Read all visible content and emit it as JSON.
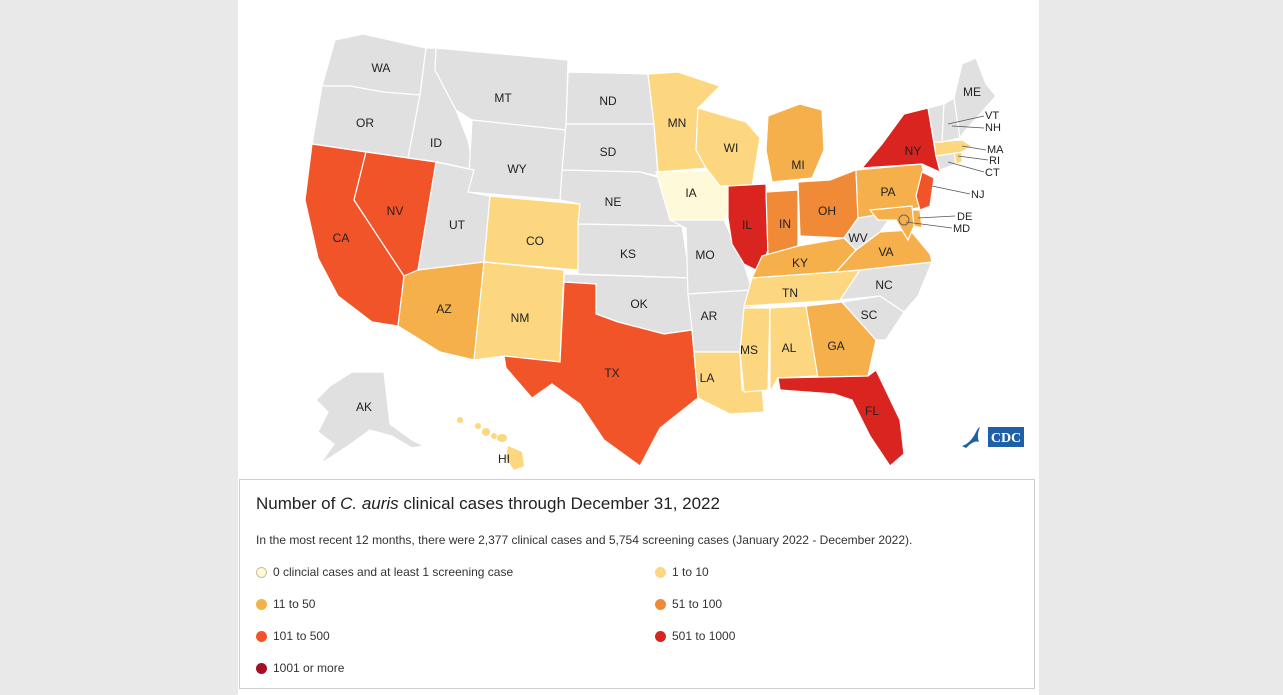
{
  "colors": {
    "none": "#e0e0e0",
    "screening_only": "#fdf9d9",
    "1_10": "#fcd77f",
    "11_50": "#f6b04b",
    "51_100": "#f08a36",
    "101_500": "#f2542a",
    "501_1000": "#d9241f",
    "1001_plus": "#a50f22"
  },
  "states": {
    "WA": {
      "label": "WA",
      "category": "none"
    },
    "OR": {
      "label": "OR",
      "category": "none"
    },
    "CA": {
      "label": "CA",
      "category": "101_500"
    },
    "NV": {
      "label": "NV",
      "category": "101_500"
    },
    "ID": {
      "label": "ID",
      "category": "none"
    },
    "MT": {
      "label": "MT",
      "category": "none"
    },
    "WY": {
      "label": "WY",
      "category": "none"
    },
    "UT": {
      "label": "UT",
      "category": "none"
    },
    "AZ": {
      "label": "AZ",
      "category": "11_50"
    },
    "CO": {
      "label": "CO",
      "category": "1_10"
    },
    "NM": {
      "label": "NM",
      "category": "1_10"
    },
    "ND": {
      "label": "ND",
      "category": "none"
    },
    "SD": {
      "label": "SD",
      "category": "none"
    },
    "NE": {
      "label": "NE",
      "category": "none"
    },
    "KS": {
      "label": "KS",
      "category": "none"
    },
    "OK": {
      "label": "OK",
      "category": "none"
    },
    "TX": {
      "label": "TX",
      "category": "101_500"
    },
    "MN": {
      "label": "MN",
      "category": "1_10"
    },
    "IA": {
      "label": "IA",
      "category": "screening_only"
    },
    "MO": {
      "label": "MO",
      "category": "none"
    },
    "AR": {
      "label": "AR",
      "category": "none"
    },
    "LA": {
      "label": "LA",
      "category": "1_10"
    },
    "WI": {
      "label": "WI",
      "category": "1_10"
    },
    "IL": {
      "label": "IL",
      "category": "501_1000"
    },
    "MI": {
      "label": "MI",
      "category": "11_50"
    },
    "IN": {
      "label": "IN",
      "category": "51_100"
    },
    "OH": {
      "label": "OH",
      "category": "51_100"
    },
    "KY": {
      "label": "KY",
      "category": "11_50"
    },
    "TN": {
      "label": "TN",
      "category": "1_10"
    },
    "MS": {
      "label": "MS",
      "category": "1_10"
    },
    "AL": {
      "label": "AL",
      "category": "1_10"
    },
    "GA": {
      "label": "GA",
      "category": "11_50"
    },
    "FL": {
      "label": "FL",
      "category": "501_1000"
    },
    "SC": {
      "label": "SC",
      "category": "none"
    },
    "NC": {
      "label": "NC",
      "category": "none"
    },
    "VA": {
      "label": "VA",
      "category": "11_50"
    },
    "WV": {
      "label": "WV",
      "category": "none"
    },
    "PA": {
      "label": "PA",
      "category": "11_50"
    },
    "NY": {
      "label": "NY",
      "category": "501_1000"
    },
    "NJ": {
      "label": "NJ",
      "category": "101_500"
    },
    "DE": {
      "label": "DE",
      "category": "11_50"
    },
    "MD": {
      "label": "MD",
      "category": "11_50"
    },
    "CT": {
      "label": "CT",
      "category": "none"
    },
    "RI": {
      "label": "RI",
      "category": "1_10"
    },
    "MA": {
      "label": "MA",
      "category": "1_10"
    },
    "VT": {
      "label": "VT",
      "category": "none"
    },
    "NH": {
      "label": "NH",
      "category": "none"
    },
    "ME": {
      "label": "ME",
      "category": "none"
    },
    "AK": {
      "label": "AK",
      "category": "none"
    },
    "HI": {
      "label": "HI",
      "category": "1_10"
    }
  },
  "logo": {
    "text": "CDC"
  },
  "legend": {
    "title_prefix": "Number of ",
    "title_italic": "C. auris",
    "title_suffix": " clinical cases through December 31, 2022",
    "description": "In the most recent 12 months, there were 2,377 clinical cases and 5,754 screening cases (January 2022 - December 2022).",
    "items": [
      {
        "label": "0 clincial cases and at least 1 screening case",
        "category": "screening_only"
      },
      {
        "label": "1 to 10",
        "category": "1_10"
      },
      {
        "label": "11 to 50",
        "category": "11_50"
      },
      {
        "label": "51 to 100",
        "category": "51_100"
      },
      {
        "label": "101 to 500",
        "category": "101_500"
      },
      {
        "label": "501 to 1000",
        "category": "501_1000"
      },
      {
        "label": "1001 or more",
        "category": "1001_plus"
      }
    ]
  }
}
